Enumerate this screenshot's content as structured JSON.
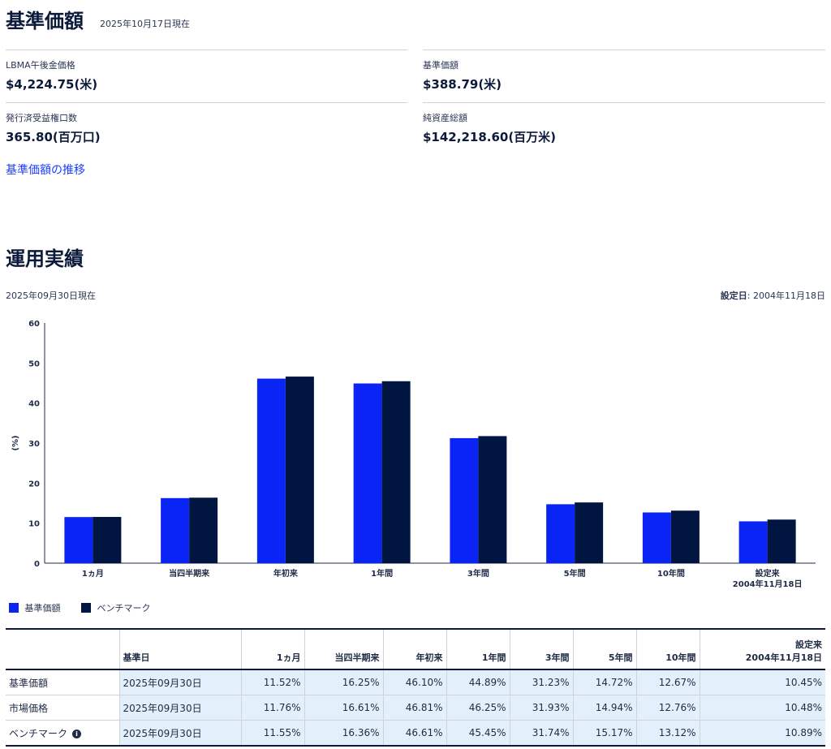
{
  "header": {
    "title": "基準価額",
    "as_of": "2025年10月17日現在"
  },
  "metrics": [
    {
      "label": "LBMA午後金価格",
      "value": "$4,224.75(米)"
    },
    {
      "label": "基準価額",
      "value": "$388.79(米)"
    },
    {
      "label": "発行済受益権口数",
      "value": "365.80(百万口)"
    },
    {
      "label": "純資産総額",
      "value": "$142,218.60(百万米)"
    }
  ],
  "nav_link": "基準価額の推移",
  "performance": {
    "title": "運用実績",
    "as_of": "2025年09月30日現在",
    "inception_label": "設定日",
    "inception_date": ": 2004年11月18日"
  },
  "colors": {
    "series1": "#0a24f5",
    "series2": "#001641",
    "table_shade": "#e3f0fb"
  },
  "chart_data": {
    "type": "bar",
    "ylabel": "(%)",
    "ylim": [
      0,
      60
    ],
    "yticks": [
      0,
      10,
      20,
      30,
      40,
      50,
      60
    ],
    "categories": [
      "1ヵ月",
      "当四半期来",
      "年初来",
      "1年間",
      "3年間",
      "5年間",
      "10年間",
      "設定来\n2004年11月18日"
    ],
    "series": [
      {
        "name": "基準価額",
        "values": [
          11.52,
          16.25,
          46.1,
          44.89,
          31.23,
          14.72,
          12.67,
          10.45
        ]
      },
      {
        "name": "ベンチマーク",
        "values": [
          11.55,
          16.36,
          46.61,
          45.45,
          31.74,
          15.17,
          13.12,
          10.89
        ]
      }
    ],
    "legend": "bottom-left",
    "grid": false
  },
  "table": {
    "headers": [
      "",
      "基準日",
      "1ヵ月",
      "当四半期来",
      "年初来",
      "1年間",
      "3年間",
      "5年間",
      "10年間",
      "設定来\n2004年11月18日"
    ],
    "rows": [
      {
        "name": "基準価額",
        "date": "2025年09月30日",
        "values": [
          "11.52%",
          "16.25%",
          "46.10%",
          "44.89%",
          "31.23%",
          "14.72%",
          "12.67%",
          "10.45%"
        ]
      },
      {
        "name": "市場価格",
        "date": "2025年09月30日",
        "values": [
          "11.76%",
          "16.61%",
          "46.81%",
          "46.25%",
          "31.93%",
          "14.94%",
          "12.76%",
          "10.48%"
        ]
      },
      {
        "name": "ベンチマーク",
        "date": "2025年09月30日",
        "values": [
          "11.55%",
          "16.36%",
          "46.61%",
          "45.45%",
          "31.74%",
          "15.17%",
          "13.12%",
          "10.89%"
        ]
      }
    ]
  }
}
